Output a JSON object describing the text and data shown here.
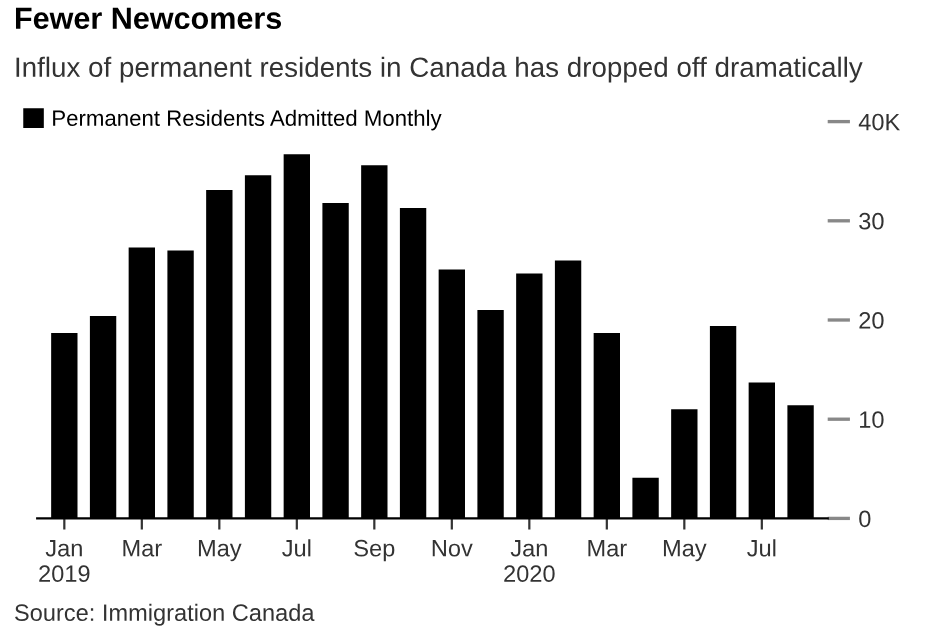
{
  "chart_data": {
    "type": "bar",
    "title": "Fewer Newcomers",
    "subtitle": "Influx of permanent residents in Canada has dropped off dramatically",
    "categories": [
      "Jan\n2019",
      null,
      "Mar",
      null,
      "May",
      null,
      "Jul",
      null,
      "Sep",
      null,
      "Nov",
      null,
      "Jan\n2020",
      null,
      "Mar",
      null,
      "May",
      null,
      "Jul",
      null
    ],
    "series": [
      {
        "name": "Permanent Residents Admitted Monthly",
        "color": "#000000",
        "values": [
          18.7,
          20.4,
          27.3,
          27.0,
          33.1,
          34.6,
          36.7,
          31.8,
          35.6,
          31.3,
          25.1,
          21.0,
          24.7,
          26.0,
          18.7,
          4.1,
          11.0,
          19.4,
          13.7,
          11.4
        ]
      }
    ],
    "ylim": [
      0,
      40
    ],
    "yticks": [
      0,
      10,
      20,
      30,
      {
        "value": 40,
        "label": "40K"
      }
    ],
    "grid": false,
    "legend": "top left",
    "annotations": [
      "Source: Immigration Canada"
    ]
  }
}
